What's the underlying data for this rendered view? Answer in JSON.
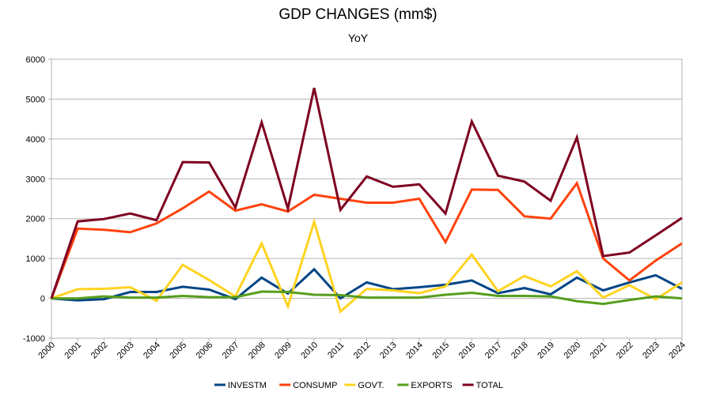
{
  "chart_data": {
    "type": "line",
    "title": "GDP CHANGES (mm$)",
    "subtitle": "YoY",
    "xlabel": "",
    "ylabel": "",
    "ylim": [
      -1000,
      6000
    ],
    "yticks": [
      -1000,
      0,
      1000,
      2000,
      3000,
      4000,
      5000,
      6000
    ],
    "grid": true,
    "legend_position": "bottom",
    "categories": [
      "2000",
      "2001",
      "2002",
      "2003",
      "2004",
      "2005",
      "2006",
      "2007",
      "2008",
      "2009",
      "2010",
      "2011",
      "2012",
      "2013",
      "2014",
      "2015",
      "2016",
      "2017",
      "2018",
      "2019",
      "2020",
      "2021",
      "2022",
      "2023",
      "2024"
    ],
    "series": [
      {
        "name": "INVESTM",
        "color": "#004586",
        "values": [
          0,
          -50,
          -20,
          160,
          160,
          290,
          220,
          -20,
          520,
          120,
          730,
          0,
          400,
          230,
          280,
          340,
          450,
          130,
          260,
          100,
          520,
          200,
          400,
          580,
          240
        ]
      },
      {
        "name": "CONSUMP",
        "color": "#ff420e",
        "values": [
          0,
          1750,
          1720,
          1660,
          1880,
          2260,
          2680,
          2200,
          2360,
          2180,
          2600,
          2500,
          2400,
          2400,
          2500,
          1410,
          2730,
          2720,
          2060,
          2000,
          2890,
          1000,
          450,
          950,
          1380
        ]
      },
      {
        "name": "GOVT.",
        "color": "#ffd320",
        "values": [
          0,
          230,
          240,
          280,
          -60,
          840,
          460,
          50,
          1380,
          -200,
          1920,
          -330,
          240,
          200,
          130,
          300,
          1100,
          180,
          560,
          300,
          680,
          20,
          330,
          -20,
          400
        ]
      },
      {
        "name": "EXPORTS",
        "color": "#579d1c",
        "values": [
          0,
          0,
          50,
          20,
          20,
          60,
          30,
          30,
          170,
          160,
          90,
          80,
          20,
          20,
          20,
          90,
          140,
          60,
          60,
          50,
          -70,
          -140,
          -40,
          50,
          0
        ]
      },
      {
        "name": "TOTAL",
        "color": "#7e0021",
        "values": [
          0,
          1930,
          1990,
          2130,
          1960,
          3420,
          3410,
          2280,
          4420,
          2250,
          5280,
          2220,
          3060,
          2800,
          2860,
          2130,
          4440,
          3080,
          2930,
          2450,
          4040,
          1060,
          1150,
          1580,
          2020
        ]
      }
    ]
  }
}
